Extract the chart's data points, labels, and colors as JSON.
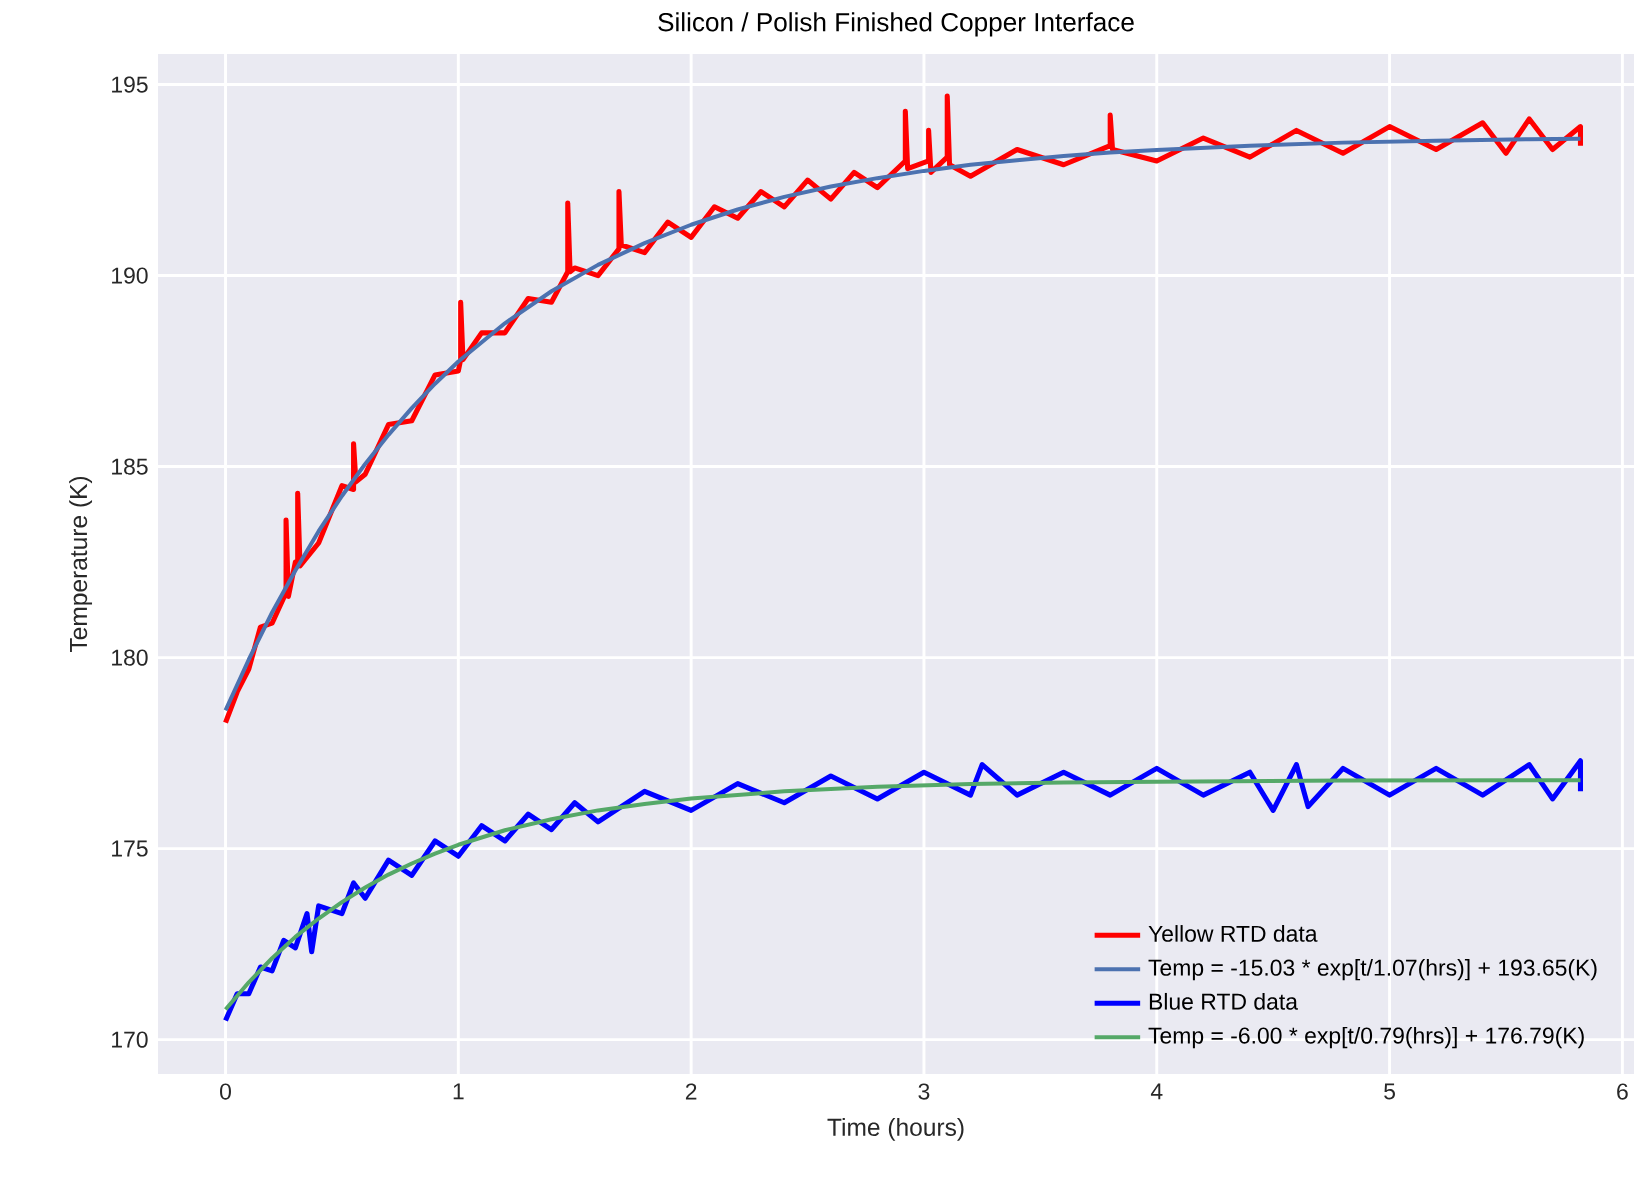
{
  "chart_data": {
    "type": "line",
    "title": "Silicon / Polish Finished Copper Interface",
    "xlabel": "Time (hours)",
    "ylabel": "Temperature (K)",
    "xlim": [
      -0.29,
      6.05
    ],
    "ylim": [
      169.1,
      195.8
    ],
    "xticks": [
      0,
      1,
      2,
      3,
      4,
      5,
      6
    ],
    "yticks": [
      170,
      175,
      180,
      185,
      190,
      195
    ],
    "grid": true,
    "legend": "bottom right",
    "series": [
      {
        "name": "Yellow RTD data",
        "color": "#ff0000",
        "x": [
          0,
          0.05,
          0.1,
          0.15,
          0.2,
          0.26,
          0.26,
          0.27,
          0.3,
          0.31,
          0.31,
          0.32,
          0.4,
          0.5,
          0.55,
          0.55,
          0.56,
          0.6,
          0.7,
          0.8,
          0.9,
          1.0,
          1.01,
          1.01,
          1.02,
          1.1,
          1.2,
          1.3,
          1.4,
          1.47,
          1.47,
          1.48,
          1.5,
          1.6,
          1.69,
          1.69,
          1.7,
          1.8,
          1.9,
          2.0,
          2.1,
          2.2,
          2.3,
          2.4,
          2.5,
          2.6,
          2.7,
          2.8,
          2.92,
          2.92,
          2.93,
          3.02,
          3.02,
          3.03,
          3.1,
          3.1,
          3.11,
          3.2,
          3.4,
          3.6,
          3.8,
          3.8,
          3.81,
          4.0,
          4.2,
          4.4,
          4.6,
          4.8,
          5.0,
          5.2,
          5.4,
          5.5,
          5.6,
          5.7,
          5.82,
          5.82
        ],
        "values": [
          178.3,
          179.1,
          179.7,
          180.8,
          180.9,
          181.7,
          183.6,
          181.6,
          182.5,
          182.4,
          184.3,
          182.4,
          183.0,
          184.5,
          184.4,
          185.6,
          184.6,
          184.8,
          186.1,
          186.2,
          187.4,
          187.5,
          187.8,
          189.3,
          187.8,
          188.5,
          188.5,
          189.4,
          189.3,
          190.1,
          191.9,
          190.1,
          190.2,
          190.0,
          190.7,
          192.2,
          190.8,
          190.6,
          191.4,
          191.0,
          191.8,
          191.5,
          192.2,
          191.8,
          192.5,
          192.0,
          192.7,
          192.3,
          193.0,
          194.3,
          192.8,
          193.0,
          193.8,
          192.7,
          193.1,
          194.7,
          192.9,
          192.6,
          193.3,
          192.9,
          193.4,
          194.2,
          193.3,
          193.0,
          193.6,
          193.1,
          193.8,
          193.2,
          193.9,
          193.3,
          194.0,
          193.2,
          194.1,
          193.3,
          193.9,
          193.4
        ]
      },
      {
        "name": "Temp = -15.03 * exp[t/1.07(hrs)] + 193.65(K)",
        "color": "#4c72b0",
        "x": [
          0,
          0.1,
          0.2,
          0.3,
          0.4,
          0.5,
          0.6,
          0.7,
          0.8,
          0.9,
          1.0,
          1.2,
          1.4,
          1.6,
          1.8,
          2.0,
          2.2,
          2.4,
          2.6,
          2.8,
          3.0,
          3.2,
          3.4,
          3.6,
          3.8,
          4.0,
          4.4,
          4.8,
          5.2,
          5.6,
          5.82
        ],
        "values": [
          178.62,
          179.95,
          181.18,
          182.28,
          183.31,
          184.23,
          185.07,
          185.83,
          186.53,
          187.17,
          187.75,
          188.75,
          189.59,
          190.28,
          190.85,
          191.33,
          191.73,
          192.06,
          192.33,
          192.55,
          192.74,
          192.9,
          193.02,
          193.13,
          193.22,
          193.29,
          193.4,
          193.48,
          193.53,
          193.57,
          193.58
        ]
      },
      {
        "name": "Blue RTD data",
        "color": "#0000ff",
        "x": [
          0,
          0.05,
          0.1,
          0.15,
          0.2,
          0.25,
          0.3,
          0.35,
          0.37,
          0.4,
          0.5,
          0.55,
          0.6,
          0.7,
          0.8,
          0.9,
          1.0,
          1.1,
          1.2,
          1.3,
          1.4,
          1.5,
          1.6,
          1.8,
          2.0,
          2.2,
          2.4,
          2.6,
          2.8,
          3.0,
          3.2,
          3.25,
          3.4,
          3.6,
          3.8,
          4.0,
          4.2,
          4.4,
          4.5,
          4.6,
          4.65,
          4.8,
          5.0,
          5.2,
          5.4,
          5.6,
          5.7,
          5.82,
          5.82
        ],
        "values": [
          170.5,
          171.2,
          171.2,
          171.9,
          171.8,
          172.6,
          172.4,
          173.3,
          172.3,
          173.5,
          173.3,
          174.1,
          173.7,
          174.7,
          174.3,
          175.2,
          174.8,
          175.6,
          175.2,
          175.9,
          175.5,
          176.2,
          175.7,
          176.5,
          176.0,
          176.7,
          176.2,
          176.9,
          176.3,
          177.0,
          176.4,
          177.2,
          176.4,
          177.0,
          176.4,
          177.1,
          176.4,
          177.0,
          176.0,
          177.2,
          176.1,
          177.1,
          176.4,
          177.1,
          176.4,
          177.2,
          176.3,
          177.3,
          176.5
        ]
      },
      {
        "name": "Temp = -6.00 * exp[t/0.79(hrs)] + 176.79(K)",
        "color": "#55a868",
        "x": [
          0,
          0.1,
          0.2,
          0.3,
          0.4,
          0.5,
          0.6,
          0.7,
          0.8,
          0.9,
          1.0,
          1.2,
          1.4,
          1.6,
          1.8,
          2.0,
          2.4,
          2.8,
          3.2,
          3.6,
          4.0,
          4.8,
          5.82
        ],
        "values": [
          170.79,
          171.5,
          172.13,
          172.69,
          173.17,
          173.6,
          173.98,
          174.32,
          174.61,
          174.87,
          175.1,
          175.48,
          175.77,
          176.0,
          176.17,
          176.31,
          176.5,
          176.62,
          176.69,
          176.73,
          176.75,
          176.78,
          176.79
        ]
      }
    ]
  }
}
